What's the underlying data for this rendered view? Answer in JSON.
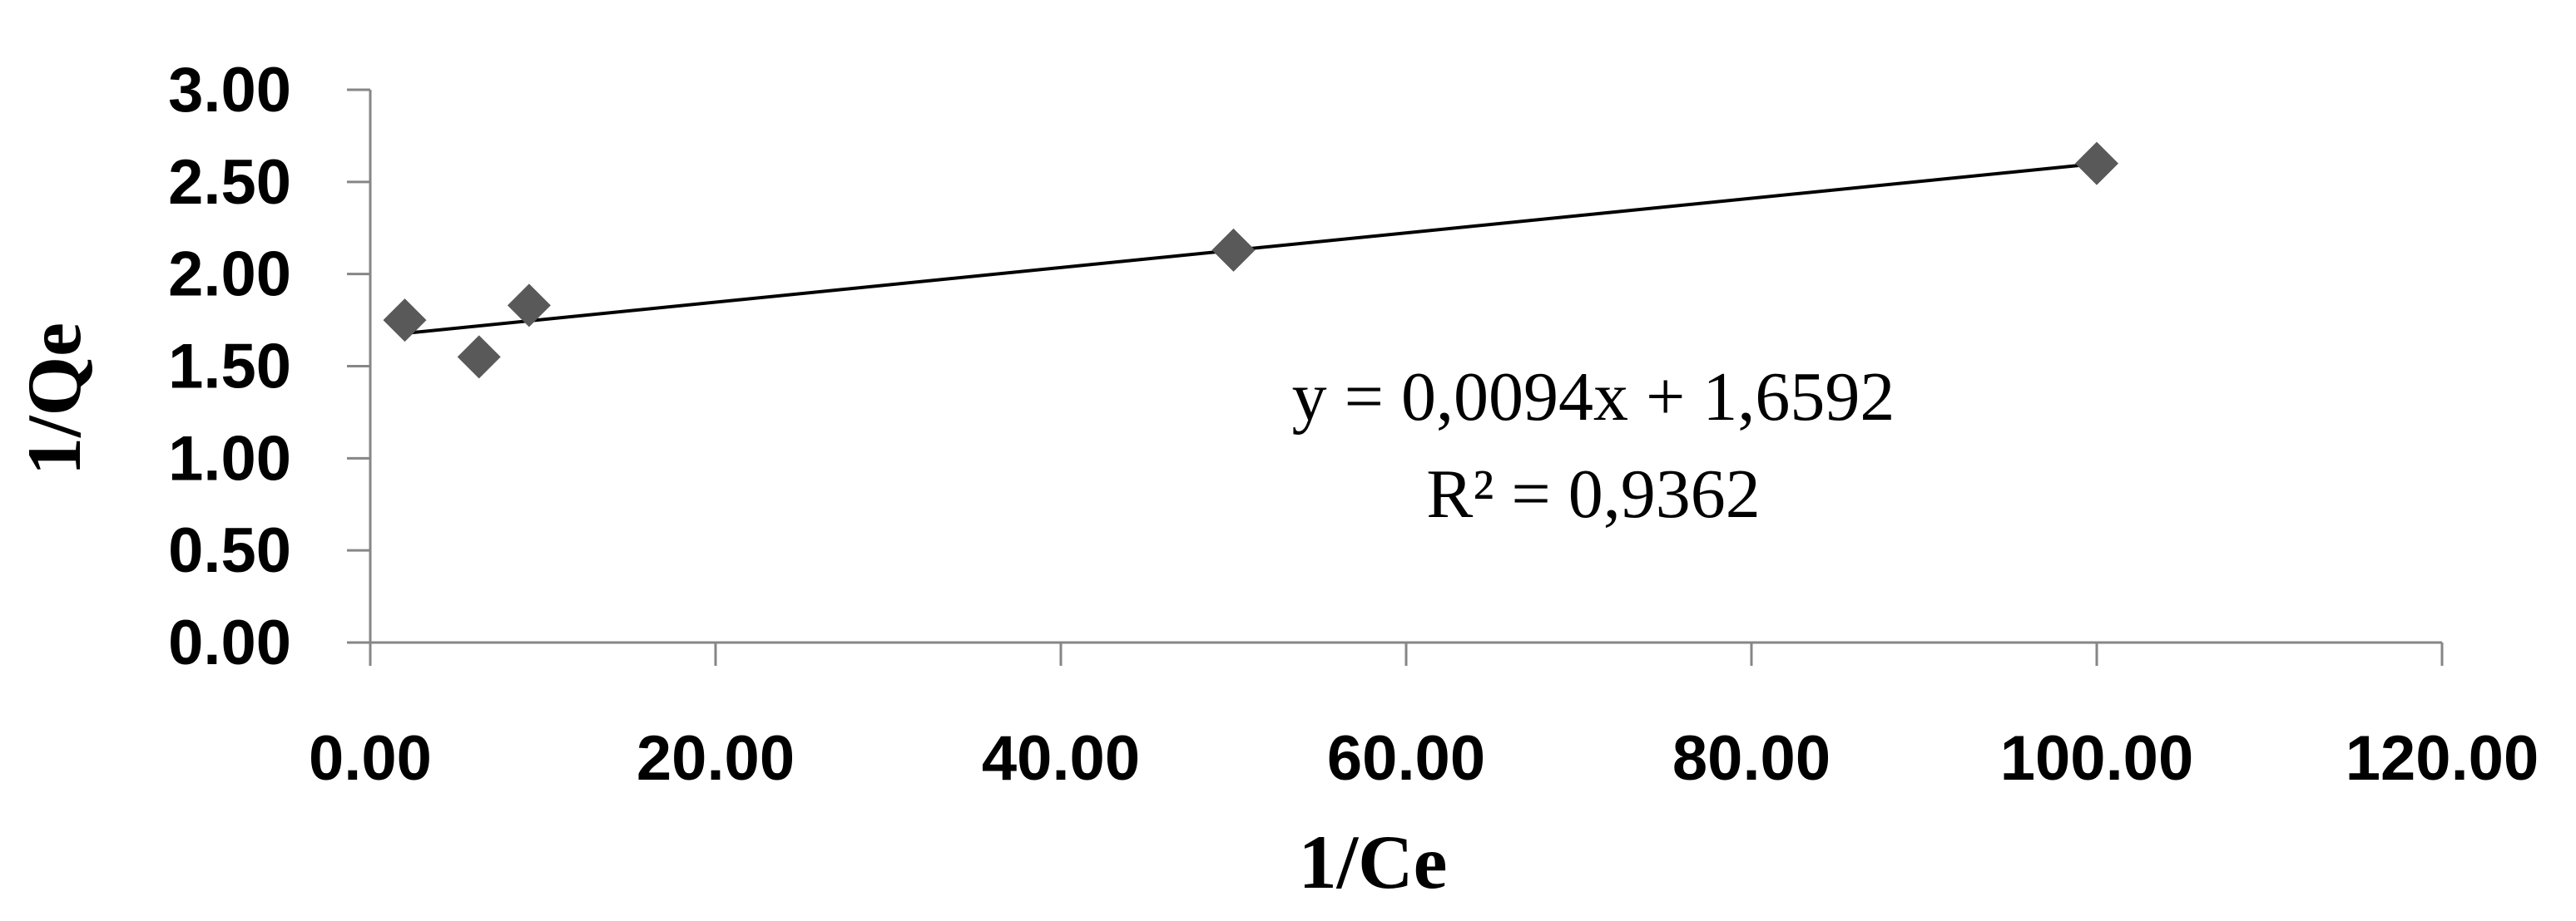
{
  "chart_data": {
    "type": "scatter",
    "xlabel": "1/Ce",
    "ylabel": "1/Qe",
    "xlim": [
      0,
      120
    ],
    "ylim": [
      0,
      3
    ],
    "x_ticks": [
      "0.00",
      "20.00",
      "40.00",
      "60.00",
      "80.00",
      "100.00",
      "120.00"
    ],
    "y_ticks": [
      "0.00",
      "0.50",
      "1.00",
      "1.50",
      "2.00",
      "2.50",
      "3.00"
    ],
    "x_tick_values": [
      0,
      20,
      40,
      60,
      80,
      100,
      120
    ],
    "y_tick_values": [
      0,
      0.5,
      1.0,
      1.5,
      2.0,
      2.5,
      3.0
    ],
    "grid": false,
    "series": [
      {
        "points": [
          {
            "x": 2.0,
            "y": 1.75
          },
          {
            "x": 6.3,
            "y": 1.55
          },
          {
            "x": 9.2,
            "y": 1.83
          },
          {
            "x": 50.0,
            "y": 2.13
          },
          {
            "x": 100.0,
            "y": 2.6
          }
        ],
        "marker": "diamond",
        "color": "#595959"
      }
    ],
    "trendline": {
      "slope": 0.0094,
      "intercept": 1.6592,
      "x_range": [
        2.0,
        100.0
      ],
      "color": "#000000"
    },
    "annotations": {
      "equation": "y = 0,0094x + 1,6592",
      "r_squared": "R² = 0,9362"
    }
  }
}
